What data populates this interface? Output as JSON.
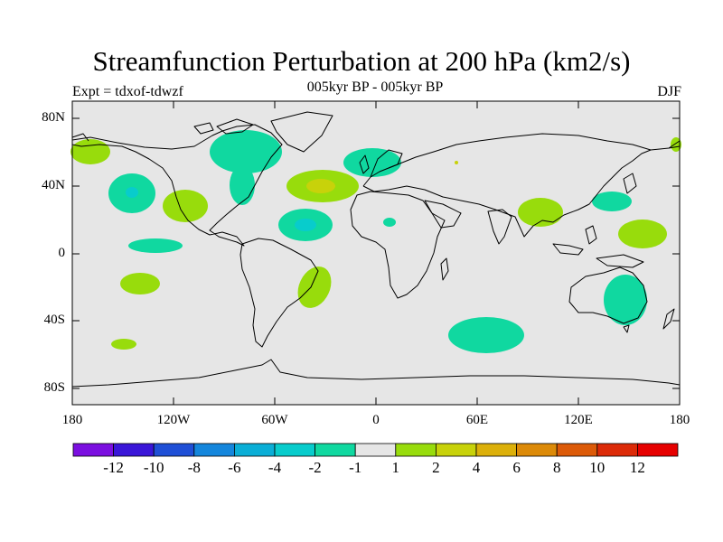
{
  "title": "Streamfunction Perturbation at 200 hPa (km2/s)",
  "subtitle": "005kyr BP - 005kyr BP",
  "left_label": "Expt = tdxof-tdwzf",
  "right_label": "DJF",
  "lat_labels": [
    "80N",
    "40N",
    "0",
    "40S",
    "80S"
  ],
  "lon_labels": [
    "180",
    "120W",
    "60W",
    "0",
    "60E",
    "120E",
    "180"
  ],
  "colorbar": {
    "labels": [
      "-12",
      "-10",
      "-8",
      "-6",
      "-4",
      "-2",
      "-1",
      "1",
      "2",
      "4",
      "6",
      "8",
      "10",
      "12"
    ],
    "colors": [
      "#7b0fe0",
      "#3a16d8",
      "#1f4fd6",
      "#1486dc",
      "#0aaed6",
      "#08cccc",
      "#10d8a0",
      "#e6e6e6",
      "#98dc0c",
      "#c8d20a",
      "#dcb00a",
      "#dc8a08",
      "#dc5a08",
      "#dc2a08",
      "#e60000"
    ]
  },
  "colors": {
    "land_ocean_bg": "#e6e6e6",
    "positive": "#98dc0c",
    "negative": "#10d8a0",
    "cyan": "#08cccc",
    "gold": "#dcb00a"
  }
}
